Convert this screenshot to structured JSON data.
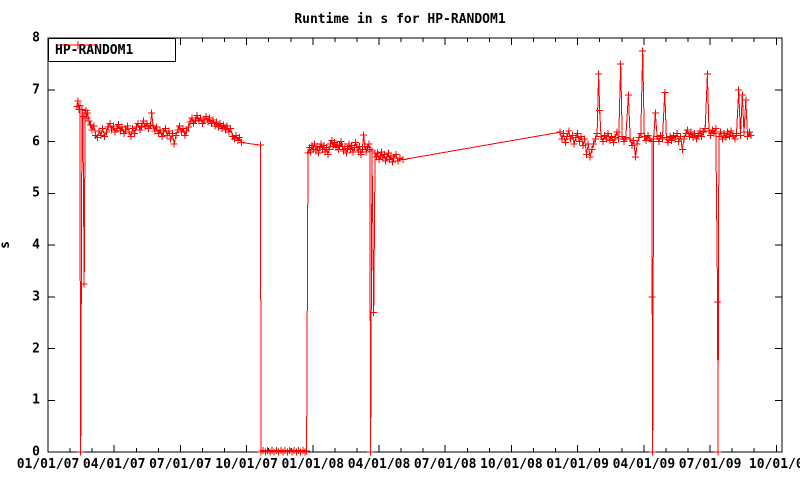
{
  "title": "Runtime in s for HP-RANDOM1",
  "legend": {
    "series_label": "HP-RANDOM1",
    "position": "top-left"
  },
  "axes": {
    "y_label": "s",
    "y_ticks": [
      "0",
      "1",
      "2",
      "3",
      "4",
      "5",
      "6",
      "7",
      "8"
    ],
    "x_tick_labels": [
      "01/01/07",
      "04/01/07",
      "07/01/07",
      "10/01/07",
      "01/01/08",
      "04/01/08",
      "07/01/08",
      "10/01/08",
      "01/01/09",
      "04/01/09",
      "07/01/09",
      "10/01/0"
    ]
  },
  "colors": {
    "series": "#ff0000",
    "axis": "#000000",
    "background": "#ffffff",
    "text": "#000000"
  },
  "chart_data": {
    "type": "line",
    "title": "Runtime in s for HP-RANDOM1",
    "xlabel": "",
    "ylabel": "s",
    "ylim": [
      0,
      8
    ],
    "xlim_months": [
      0,
      33.26
    ],
    "x_unit": "months since 01/01/07, major ticks every 3 months, minor every month",
    "grid": false,
    "legend_position": "top-left",
    "marker": "plus",
    "series": [
      {
        "name": "HP-RANDOM1",
        "points": [
          [
            1.31,
            6.68
          ],
          [
            1.36,
            6.78
          ],
          [
            1.4,
            6.62
          ],
          [
            1.44,
            6.7
          ],
          [
            1.48,
            0.0
          ],
          [
            1.54,
            6.62
          ],
          [
            1.58,
            6.48
          ],
          [
            1.64,
            3.25
          ],
          [
            1.68,
            6.55
          ],
          [
            1.72,
            6.6
          ],
          [
            1.76,
            6.45
          ],
          [
            1.8,
            6.55
          ],
          [
            1.86,
            6.4
          ],
          [
            1.92,
            6.32
          ],
          [
            2.0,
            6.22
          ],
          [
            2.08,
            6.3
          ],
          [
            2.16,
            6.12
          ],
          [
            2.24,
            6.08
          ],
          [
            2.32,
            6.2
          ],
          [
            2.4,
            6.12
          ],
          [
            2.48,
            6.25
          ],
          [
            2.56,
            6.1
          ],
          [
            2.64,
            6.18
          ],
          [
            2.72,
            6.28
          ],
          [
            2.8,
            6.35
          ],
          [
            2.88,
            6.22
          ],
          [
            2.96,
            6.3
          ],
          [
            3.04,
            6.18
          ],
          [
            3.12,
            6.25
          ],
          [
            3.2,
            6.33
          ],
          [
            3.28,
            6.2
          ],
          [
            3.36,
            6.28
          ],
          [
            3.44,
            6.15
          ],
          [
            3.52,
            6.22
          ],
          [
            3.6,
            6.3
          ],
          [
            3.68,
            6.18
          ],
          [
            3.76,
            6.1
          ],
          [
            3.84,
            6.25
          ],
          [
            3.92,
            6.15
          ],
          [
            4.0,
            6.28
          ],
          [
            4.08,
            6.35
          ],
          [
            4.16,
            6.22
          ],
          [
            4.24,
            6.3
          ],
          [
            4.32,
            6.4
          ],
          [
            4.4,
            6.28
          ],
          [
            4.48,
            6.35
          ],
          [
            4.56,
            6.25
          ],
          [
            4.64,
            6.32
          ],
          [
            4.7,
            6.55
          ],
          [
            4.76,
            6.3
          ],
          [
            4.84,
            6.2
          ],
          [
            4.92,
            6.28
          ],
          [
            5.0,
            6.15
          ],
          [
            5.08,
            6.22
          ],
          [
            5.16,
            6.1
          ],
          [
            5.24,
            6.18
          ],
          [
            5.32,
            6.25
          ],
          [
            5.4,
            6.12
          ],
          [
            5.48,
            6.2
          ],
          [
            5.56,
            6.05
          ],
          [
            5.64,
            6.15
          ],
          [
            5.72,
            5.95
          ],
          [
            5.8,
            6.12
          ],
          [
            5.88,
            6.22
          ],
          [
            5.96,
            6.3
          ],
          [
            6.04,
            6.18
          ],
          [
            6.12,
            6.25
          ],
          [
            6.2,
            6.12
          ],
          [
            6.28,
            6.2
          ],
          [
            6.36,
            6.28
          ],
          [
            6.44,
            6.38
          ],
          [
            6.52,
            6.45
          ],
          [
            6.6,
            6.35
          ],
          [
            6.68,
            6.42
          ],
          [
            6.76,
            6.5
          ],
          [
            6.84,
            6.4
          ],
          [
            6.92,
            6.45
          ],
          [
            7.0,
            6.35
          ],
          [
            7.08,
            6.42
          ],
          [
            7.16,
            6.48
          ],
          [
            7.24,
            6.38
          ],
          [
            7.32,
            6.45
          ],
          [
            7.4,
            6.35
          ],
          [
            7.48,
            6.42
          ],
          [
            7.56,
            6.3
          ],
          [
            7.64,
            6.38
          ],
          [
            7.72,
            6.28
          ],
          [
            7.8,
            6.35
          ],
          [
            7.88,
            6.25
          ],
          [
            7.96,
            6.32
          ],
          [
            8.04,
            6.22
          ],
          [
            8.12,
            6.3
          ],
          [
            8.2,
            6.18
          ],
          [
            8.28,
            6.25
          ],
          [
            8.36,
            6.1
          ],
          [
            8.44,
            6.05
          ],
          [
            8.52,
            6.12
          ],
          [
            8.6,
            6.02
          ],
          [
            8.68,
            6.08
          ],
          [
            8.76,
            5.98
          ],
          [
            9.62,
            5.93
          ],
          [
            9.66,
            0.0
          ],
          [
            9.75,
            0.03
          ],
          [
            9.85,
            0.0
          ],
          [
            9.95,
            0.03
          ],
          [
            10.05,
            0.0
          ],
          [
            10.15,
            0.03
          ],
          [
            10.25,
            0.0
          ],
          [
            10.35,
            0.03
          ],
          [
            10.45,
            0.0
          ],
          [
            10.55,
            0.03
          ],
          [
            10.65,
            0.0
          ],
          [
            10.75,
            0.03
          ],
          [
            10.85,
            0.0
          ],
          [
            10.95,
            0.03
          ],
          [
            11.05,
            0.0
          ],
          [
            11.15,
            0.03
          ],
          [
            11.25,
            0.0
          ],
          [
            11.35,
            0.03
          ],
          [
            11.45,
            0.0
          ],
          [
            11.55,
            0.03
          ],
          [
            11.65,
            0.0
          ],
          [
            11.72,
            0.02
          ],
          [
            11.78,
            5.78
          ],
          [
            11.84,
            5.88
          ],
          [
            11.9,
            5.8
          ],
          [
            11.96,
            5.92
          ],
          [
            12.02,
            5.85
          ],
          [
            12.08,
            5.95
          ],
          [
            12.14,
            5.82
          ],
          [
            12.2,
            5.9
          ],
          [
            12.26,
            5.78
          ],
          [
            12.32,
            5.88
          ],
          [
            12.38,
            5.95
          ],
          [
            12.44,
            5.85
          ],
          [
            12.5,
            5.92
          ],
          [
            12.56,
            5.8
          ],
          [
            12.62,
            5.88
          ],
          [
            12.68,
            5.75
          ],
          [
            12.74,
            5.85
          ],
          [
            12.8,
            5.95
          ],
          [
            12.86,
            6.02
          ],
          [
            12.92,
            5.9
          ],
          [
            12.98,
            5.98
          ],
          [
            13.04,
            5.88
          ],
          [
            13.1,
            5.95
          ],
          [
            13.16,
            5.85
          ],
          [
            13.22,
            5.92
          ],
          [
            13.28,
            6.0
          ],
          [
            13.34,
            5.9
          ],
          [
            13.4,
            5.82
          ],
          [
            13.46,
            5.9
          ],
          [
            13.52,
            5.78
          ],
          [
            13.58,
            5.86
          ],
          [
            13.64,
            5.95
          ],
          [
            13.7,
            5.85
          ],
          [
            13.76,
            5.92
          ],
          [
            13.82,
            5.8
          ],
          [
            13.88,
            5.88
          ],
          [
            13.94,
            5.98
          ],
          [
            14.0,
            5.88
          ],
          [
            14.06,
            5.8
          ],
          [
            14.12,
            5.9
          ],
          [
            14.18,
            5.75
          ],
          [
            14.24,
            5.85
          ],
          [
            14.3,
            6.13
          ],
          [
            14.36,
            5.9
          ],
          [
            14.42,
            5.8
          ],
          [
            14.48,
            5.88
          ],
          [
            14.54,
            5.95
          ],
          [
            14.58,
            5.85
          ],
          [
            14.62,
            0.0
          ],
          [
            14.68,
            5.82
          ],
          [
            14.76,
            2.7
          ],
          [
            14.82,
            5.78
          ],
          [
            14.88,
            5.7
          ],
          [
            14.94,
            5.78
          ],
          [
            15.0,
            5.65
          ],
          [
            15.06,
            5.72
          ],
          [
            15.12,
            5.8
          ],
          [
            15.18,
            5.68
          ],
          [
            15.24,
            5.75
          ],
          [
            15.3,
            5.62
          ],
          [
            15.36,
            5.7
          ],
          [
            15.42,
            5.78
          ],
          [
            15.48,
            5.65
          ],
          [
            15.54,
            5.72
          ],
          [
            15.6,
            5.6
          ],
          [
            15.66,
            5.68
          ],
          [
            15.76,
            5.75
          ],
          [
            15.86,
            5.62
          ],
          [
            15.96,
            5.68
          ],
          [
            16.08,
            5.65
          ],
          [
            23.2,
            6.18
          ],
          [
            23.28,
            6.05
          ],
          [
            23.36,
            6.15
          ],
          [
            23.44,
            5.98
          ],
          [
            23.52,
            6.1
          ],
          [
            23.6,
            6.2
          ],
          [
            23.68,
            6.05
          ],
          [
            23.76,
            6.12
          ],
          [
            23.84,
            5.95
          ],
          [
            23.92,
            6.08
          ],
          [
            24.0,
            6.15
          ],
          [
            24.08,
            6.0
          ],
          [
            24.16,
            6.1
          ],
          [
            24.24,
            5.92
          ],
          [
            24.32,
            6.05
          ],
          [
            24.4,
            5.75
          ],
          [
            24.48,
            5.95
          ],
          [
            24.56,
            5.7
          ],
          [
            24.64,
            5.85
          ],
          [
            24.72,
            5.95
          ],
          [
            24.8,
            6.05
          ],
          [
            24.88,
            6.15
          ],
          [
            24.95,
            7.3
          ],
          [
            25.0,
            6.6
          ],
          [
            25.06,
            6.1
          ],
          [
            25.14,
            6.0
          ],
          [
            25.22,
            6.12
          ],
          [
            25.3,
            6.05
          ],
          [
            25.38,
            6.15
          ],
          [
            25.46,
            6.02
          ],
          [
            25.54,
            6.1
          ],
          [
            25.62,
            5.98
          ],
          [
            25.7,
            6.08
          ],
          [
            25.78,
            6.18
          ],
          [
            25.86,
            6.05
          ],
          [
            25.95,
            7.5
          ],
          [
            26.02,
            6.1
          ],
          [
            26.1,
            6.0
          ],
          [
            26.18,
            6.08
          ],
          [
            26.3,
            6.9
          ],
          [
            26.38,
            6.05
          ],
          [
            26.46,
            5.92
          ],
          [
            26.54,
            6.02
          ],
          [
            26.62,
            5.7
          ],
          [
            26.7,
            5.95
          ],
          [
            26.78,
            6.08
          ],
          [
            26.86,
            6.15
          ],
          [
            26.95,
            7.75
          ],
          [
            27.02,
            6.1
          ],
          [
            27.1,
            6.02
          ],
          [
            27.18,
            6.12
          ],
          [
            27.28,
            6.05
          ],
          [
            27.36,
            6.0
          ],
          [
            27.38,
            3.0
          ],
          [
            27.4,
            0.0
          ],
          [
            27.44,
            6.05
          ],
          [
            27.52,
            6.55
          ],
          [
            27.6,
            6.1
          ],
          [
            27.68,
            6.0
          ],
          [
            27.76,
            6.12
          ],
          [
            27.84,
            6.05
          ],
          [
            27.95,
            6.95
          ],
          [
            28.02,
            6.08
          ],
          [
            28.1,
            5.98
          ],
          [
            28.18,
            6.1
          ],
          [
            28.26,
            6.02
          ],
          [
            28.34,
            6.12
          ],
          [
            28.42,
            6.05
          ],
          [
            28.5,
            6.15
          ],
          [
            28.58,
            6.0
          ],
          [
            28.66,
            6.1
          ],
          [
            28.74,
            5.85
          ],
          [
            28.82,
            6.05
          ],
          [
            28.9,
            6.15
          ],
          [
            28.98,
            6.22
          ],
          [
            29.06,
            6.1
          ],
          [
            29.14,
            6.18
          ],
          [
            29.22,
            6.08
          ],
          [
            29.3,
            6.15
          ],
          [
            29.38,
            6.05
          ],
          [
            29.46,
            6.12
          ],
          [
            29.54,
            6.2
          ],
          [
            29.62,
            6.1
          ],
          [
            29.7,
            6.18
          ],
          [
            29.78,
            6.25
          ],
          [
            29.88,
            7.3
          ],
          [
            29.95,
            6.2
          ],
          [
            30.02,
            6.12
          ],
          [
            30.1,
            6.22
          ],
          [
            30.18,
            6.15
          ],
          [
            30.26,
            6.25
          ],
          [
            30.34,
            2.9
          ],
          [
            30.36,
            0.0
          ],
          [
            30.4,
            6.1
          ],
          [
            30.48,
            6.18
          ],
          [
            30.56,
            6.05
          ],
          [
            30.64,
            6.15
          ],
          [
            30.72,
            6.08
          ],
          [
            30.8,
            6.18
          ],
          [
            30.88,
            6.1
          ],
          [
            30.96,
            6.2
          ],
          [
            31.04,
            6.12
          ],
          [
            31.12,
            6.05
          ],
          [
            31.2,
            6.15
          ],
          [
            31.3,
            7.0
          ],
          [
            31.38,
            6.12
          ],
          [
            31.46,
            6.9
          ],
          [
            31.54,
            6.18
          ],
          [
            31.62,
            6.8
          ],
          [
            31.7,
            6.1
          ],
          [
            31.78,
            6.18
          ],
          [
            31.85,
            6.12
          ]
        ]
      }
    ]
  }
}
